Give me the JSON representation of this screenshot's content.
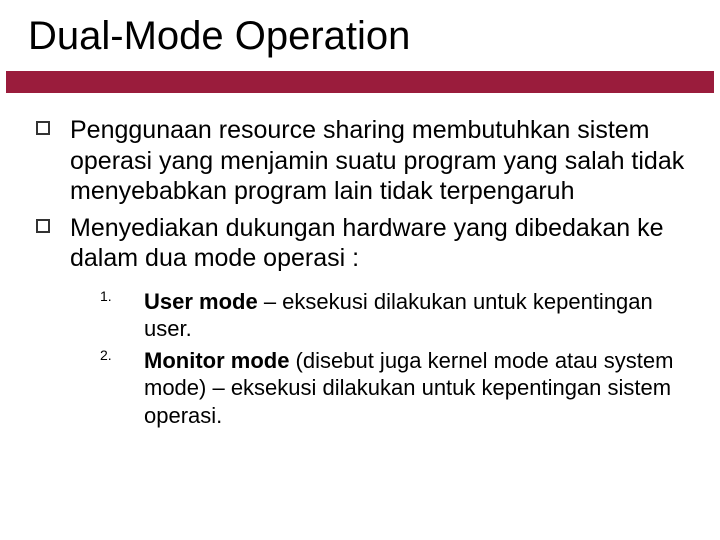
{
  "slide": {
    "title": "Dual-Mode Operation",
    "accent_color": "#9a1c3c",
    "background_color": "#ffffff",
    "title_fontsize": 40,
    "body_fontsize": 25,
    "sub_fontsize": 22,
    "bullets": [
      {
        "text": "Penggunaan resource sharing membutuhkan sistem operasi yang menjamin suatu program yang salah tidak menyebabkan program lain tidak terpengaruh"
      },
      {
        "text": "Menyediakan dukungan hardware yang dibedakan ke dalam dua mode operasi :"
      }
    ],
    "numbered": [
      {
        "num": "1.",
        "bold": "User mode",
        "rest": " – eksekusi dilakukan untuk kepentingan user."
      },
      {
        "num": "2.",
        "bold": "Monitor mode",
        "rest": " (disebut juga kernel mode atau system mode) – eksekusi dilakukan untuk kepentingan sistem operasi."
      }
    ]
  }
}
